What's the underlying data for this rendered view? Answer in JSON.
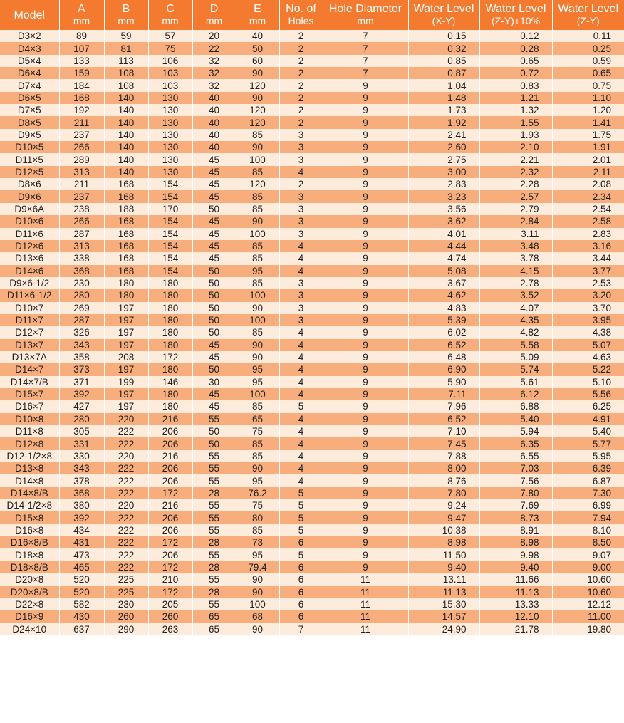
{
  "headers": [
    {
      "l1": "Model",
      "l2": ""
    },
    {
      "l1": "A",
      "l2": "mm"
    },
    {
      "l1": "B",
      "l2": "mm"
    },
    {
      "l1": "C",
      "l2": "mm"
    },
    {
      "l1": "D",
      "l2": "mm"
    },
    {
      "l1": "E",
      "l2": "mm"
    },
    {
      "l1": "No. of",
      "l2": "Holes"
    },
    {
      "l1": "Hole Diameter",
      "l2": "mm"
    },
    {
      "l1": "Water Level",
      "l2": "(X-Y)"
    },
    {
      "l1": "Water Level",
      "l2": "(Z-Y)+10%"
    },
    {
      "l1": "Water Level",
      "l2": "(Z-Y)"
    }
  ],
  "rows": [
    [
      "D3×2",
      "89",
      "59",
      "57",
      "20",
      "40",
      "2",
      "7",
      "0.15",
      "0.12",
      "0.11"
    ],
    [
      "D4×3",
      "107",
      "81",
      "75",
      "22",
      "50",
      "2",
      "7",
      "0.32",
      "0.28",
      "0.25"
    ],
    [
      "D5×4",
      "133",
      "113",
      "106",
      "32",
      "60",
      "2",
      "7",
      "0.85",
      "0.65",
      "0.59"
    ],
    [
      "D6×4",
      "159",
      "108",
      "103",
      "32",
      "90",
      "2",
      "7",
      "0.87",
      "0.72",
      "0.65"
    ],
    [
      "D7×4",
      "184",
      "108",
      "103",
      "32",
      "120",
      "2",
      "9",
      "1.04",
      "0.83",
      "0.75"
    ],
    [
      "D6×5",
      "168",
      "140",
      "130",
      "40",
      "90",
      "2",
      "9",
      "1.48",
      "1.21",
      "1.10"
    ],
    [
      "D7×5",
      "192",
      "140",
      "130",
      "40",
      "120",
      "2",
      "9",
      "1.73",
      "1.32",
      "1.20"
    ],
    [
      "D8×5",
      "211",
      "140",
      "130",
      "40",
      "120",
      "2",
      "9",
      "1.92",
      "1.55",
      "1.41"
    ],
    [
      "D9×5",
      "237",
      "140",
      "130",
      "40",
      "85",
      "3",
      "9",
      "2.41",
      "1.93",
      "1.75"
    ],
    [
      "D10×5",
      "266",
      "140",
      "130",
      "40",
      "90",
      "3",
      "9",
      "2.60",
      "2.10",
      "1.91"
    ],
    [
      "D11×5",
      "289",
      "140",
      "130",
      "45",
      "100",
      "3",
      "9",
      "2.75",
      "2.21",
      "2.01"
    ],
    [
      "D12×5",
      "313",
      "140",
      "130",
      "45",
      "85",
      "4",
      "9",
      "3.00",
      "2.32",
      "2.11"
    ],
    [
      "D8×6",
      "211",
      "168",
      "154",
      "45",
      "120",
      "2",
      "9",
      "2.83",
      "2.28",
      "2.08"
    ],
    [
      "D9×6",
      "237",
      "168",
      "154",
      "45",
      "85",
      "3",
      "9",
      "3.23",
      "2.57",
      "2.34"
    ],
    [
      "D9×6A",
      "238",
      "188",
      "170",
      "50",
      "85",
      "3",
      "9",
      "3.56",
      "2.79",
      "2.54"
    ],
    [
      "D10×6",
      "266",
      "168",
      "154",
      "45",
      "90",
      "3",
      "9",
      "3.62",
      "2.84",
      "2.58"
    ],
    [
      "D11×6",
      "287",
      "168",
      "154",
      "45",
      "100",
      "3",
      "9",
      "4.01",
      "3.11",
      "2.83"
    ],
    [
      "D12×6",
      "313",
      "168",
      "154",
      "45",
      "85",
      "4",
      "9",
      "4.44",
      "3.48",
      "3.16"
    ],
    [
      "D13×6",
      "338",
      "168",
      "154",
      "45",
      "85",
      "4",
      "9",
      "4.74",
      "3.78",
      "3.44"
    ],
    [
      "D14×6",
      "368",
      "168",
      "154",
      "50",
      "95",
      "4",
      "9",
      "5.08",
      "4.15",
      "3.77"
    ],
    [
      "D9×6-1/2",
      "230",
      "180",
      "180",
      "50",
      "85",
      "3",
      "9",
      "3.67",
      "2.78",
      "2.53"
    ],
    [
      "D11×6-1/2",
      "280",
      "180",
      "180",
      "50",
      "100",
      "3",
      "9",
      "4.62",
      "3.52",
      "3.20"
    ],
    [
      "D10×7",
      "269",
      "197",
      "180",
      "50",
      "90",
      "3",
      "9",
      "4.83",
      "4.07",
      "3.70"
    ],
    [
      "D11×7",
      "287",
      "197",
      "180",
      "50",
      "100",
      "3",
      "9",
      "5.39",
      "4.35",
      "3.95"
    ],
    [
      "D12×7",
      "326",
      "197",
      "180",
      "50",
      "85",
      "4",
      "9",
      "6.02",
      "4.82",
      "4.38"
    ],
    [
      "D13×7",
      "343",
      "197",
      "180",
      "45",
      "90",
      "4",
      "9",
      "6.52",
      "5.58",
      "5.07"
    ],
    [
      "D13×7A",
      "358",
      "208",
      "172",
      "45",
      "90",
      "4",
      "9",
      "6.48",
      "5.09",
      "4.63"
    ],
    [
      "D14×7",
      "373",
      "197",
      "180",
      "50",
      "95",
      "4",
      "9",
      "6.90",
      "5.74",
      "5.22"
    ],
    [
      "D14×7/B",
      "371",
      "199",
      "146",
      "30",
      "95",
      "4",
      "9",
      "5.90",
      "5.61",
      "5.10"
    ],
    [
      "D15×7",
      "392",
      "197",
      "180",
      "45",
      "100",
      "4",
      "9",
      "7.11",
      "6.12",
      "5.56"
    ],
    [
      "D16×7",
      "427",
      "197",
      "180",
      "45",
      "85",
      "5",
      "9",
      "7.96",
      "6.88",
      "6.25"
    ],
    [
      "D10×8",
      "280",
      "220",
      "216",
      "55",
      "65",
      "4",
      "9",
      "6.52",
      "5.40",
      "4.91"
    ],
    [
      "D11×8",
      "305",
      "222",
      "206",
      "50",
      "75",
      "4",
      "9",
      "7.10",
      "5.94",
      "5.40"
    ],
    [
      "D12×8",
      "331",
      "222",
      "206",
      "50",
      "85",
      "4",
      "9",
      "7.45",
      "6.35",
      "5.77"
    ],
    [
      "D12-1/2×8",
      "330",
      "220",
      "216",
      "55",
      "85",
      "4",
      "9",
      "7.88",
      "6.55",
      "5.95"
    ],
    [
      "D13×8",
      "343",
      "222",
      "206",
      "55",
      "90",
      "4",
      "9",
      "8.00",
      "7.03",
      "6.39"
    ],
    [
      "D14×8",
      "378",
      "222",
      "206",
      "55",
      "95",
      "4",
      "9",
      "8.76",
      "7.56",
      "6.87"
    ],
    [
      "D14×8/B",
      "368",
      "222",
      "172",
      "28",
      "76.2",
      "5",
      "9",
      "7.80",
      "7.80",
      "7.30"
    ],
    [
      "D14-1/2×8",
      "380",
      "220",
      "216",
      "55",
      "75",
      "5",
      "9",
      "9.24",
      "7.69",
      "6.99"
    ],
    [
      "D15×8",
      "392",
      "222",
      "206",
      "55",
      "80",
      "5",
      "9",
      "9.47",
      "8.73",
      "7.94"
    ],
    [
      "D16×8",
      "434",
      "222",
      "206",
      "55",
      "85",
      "5",
      "9",
      "10.38",
      "8.91",
      "8.10"
    ],
    [
      "D16×8/B",
      "431",
      "222",
      "172",
      "28",
      "73",
      "6",
      "9",
      "8.98",
      "8.98",
      "8.50"
    ],
    [
      "D18×8",
      "473",
      "222",
      "206",
      "55",
      "95",
      "5",
      "9",
      "11.50",
      "9.98",
      "9.07"
    ],
    [
      "D18×8/B",
      "465",
      "222",
      "172",
      "28",
      "79.4",
      "6",
      "9",
      "9.40",
      "9.40",
      "9.00"
    ],
    [
      "D20×8",
      "520",
      "225",
      "210",
      "55",
      "90",
      "6",
      "11",
      "13.11",
      "11.66",
      "10.60"
    ],
    [
      "D20×8/B",
      "520",
      "225",
      "172",
      "28",
      "90",
      "6",
      "11",
      "11.13",
      "11.13",
      "10.60"
    ],
    [
      "D22×8",
      "582",
      "230",
      "205",
      "55",
      "100",
      "6",
      "11",
      "15.30",
      "13.33",
      "12.12"
    ],
    [
      "D16×9",
      "430",
      "260",
      "260",
      "65",
      "68",
      "6",
      "11",
      "14.57",
      "12.10",
      "11.00"
    ],
    [
      "D24×10",
      "637",
      "290",
      "263",
      "65",
      "90",
      "7",
      "11",
      "24.90",
      "21.78",
      "19.80"
    ]
  ]
}
